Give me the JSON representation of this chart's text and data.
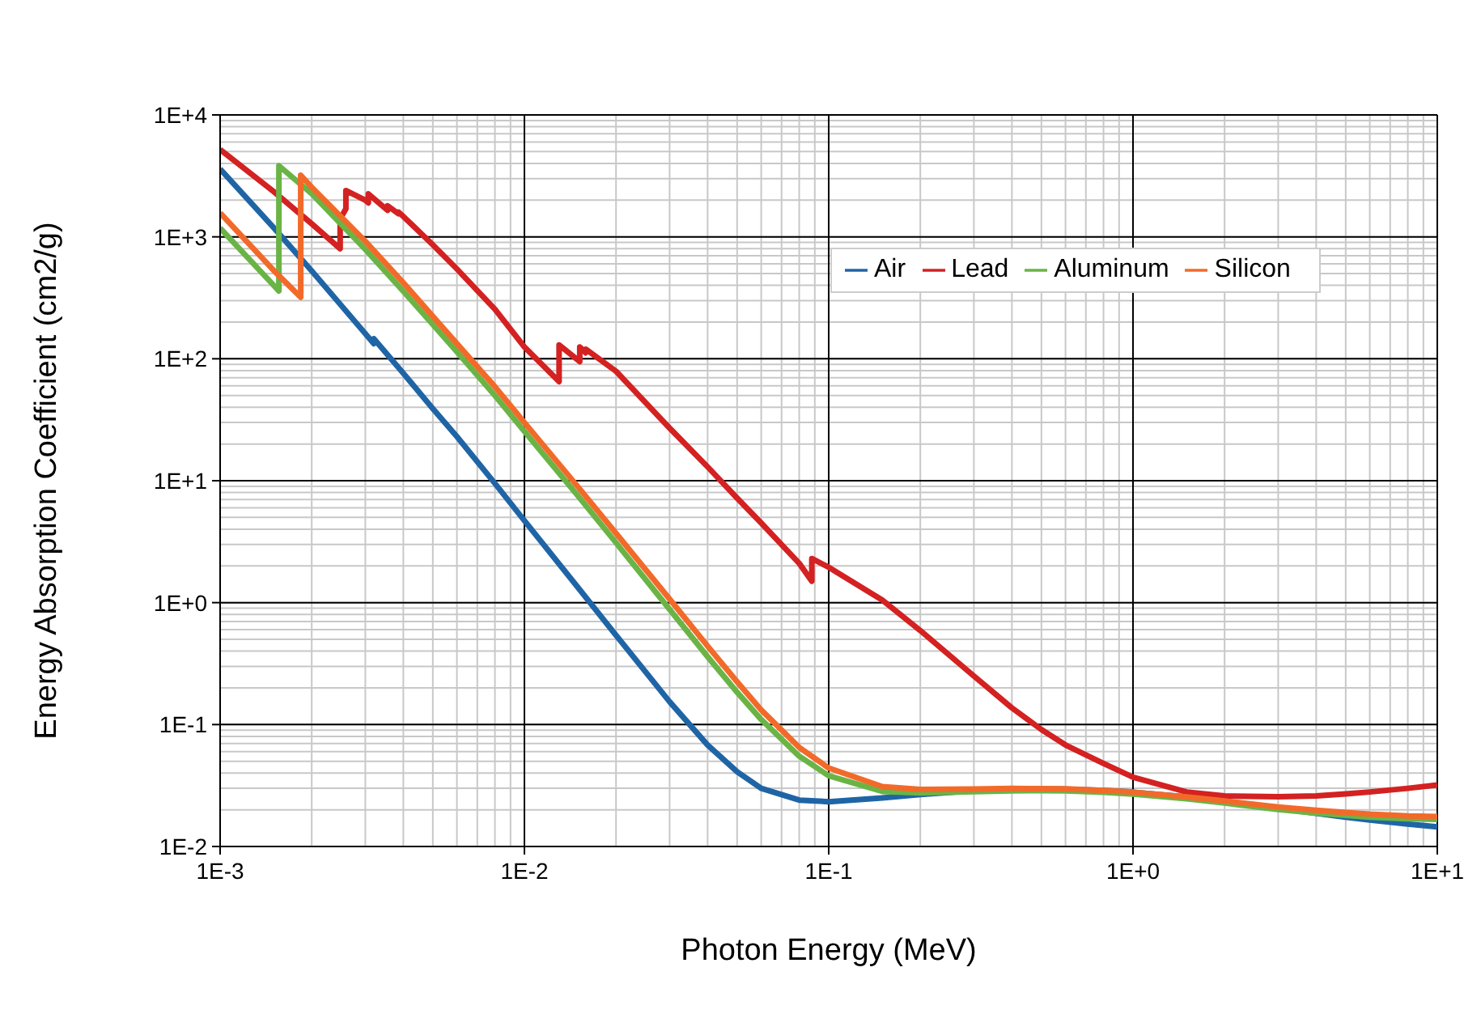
{
  "chart_data": {
    "type": "line",
    "xlabel": "Photon Energy (MeV)",
    "ylabel": "Energy Absorption Coefficient (cm2/g)",
    "log": "xy",
    "grid": true,
    "legend": "top right",
    "marker": "none",
    "line_style": "solid",
    "xlim": [
      0.001,
      10
    ],
    "ylim": [
      0.01,
      10000
    ],
    "xticks": [
      {
        "value": 0.001,
        "label": "1E-3"
      },
      {
        "value": 0.002,
        "label": null
      },
      {
        "value": 0.003,
        "label": null
      },
      {
        "value": 0.004,
        "label": null
      },
      {
        "value": 0.005,
        "label": null
      },
      {
        "value": 0.006,
        "label": null
      },
      {
        "value": 0.007,
        "label": null
      },
      {
        "value": 0.008,
        "label": null
      },
      {
        "value": 0.009,
        "label": null
      },
      {
        "value": 0.01,
        "label": "1E-2"
      },
      {
        "value": 0.02,
        "label": null
      },
      {
        "value": 0.03,
        "label": null
      },
      {
        "value": 0.04,
        "label": null
      },
      {
        "value": 0.05,
        "label": null
      },
      {
        "value": 0.06,
        "label": null
      },
      {
        "value": 0.07,
        "label": null
      },
      {
        "value": 0.08,
        "label": null
      },
      {
        "value": 0.09,
        "label": null
      },
      {
        "value": 0.1,
        "label": "1E-1"
      },
      {
        "value": 0.2,
        "label": null
      },
      {
        "value": 0.3,
        "label": null
      },
      {
        "value": 0.4,
        "label": null
      },
      {
        "value": 0.5,
        "label": null
      },
      {
        "value": 0.6,
        "label": null
      },
      {
        "value": 0.7,
        "label": null
      },
      {
        "value": 0.8,
        "label": null
      },
      {
        "value": 0.9,
        "label": null
      },
      {
        "value": 1,
        "label": "1E+0"
      },
      {
        "value": 2,
        "label": null
      },
      {
        "value": 3,
        "label": null
      },
      {
        "value": 4,
        "label": null
      },
      {
        "value": 5,
        "label": null
      },
      {
        "value": 6,
        "label": null
      },
      {
        "value": 7,
        "label": null
      },
      {
        "value": 8,
        "label": null
      },
      {
        "value": 9,
        "label": null
      },
      {
        "value": 10,
        "label": "1E+1"
      }
    ],
    "yticks": [
      {
        "value": 0.01,
        "label": "1E-2"
      },
      {
        "value": 0.02,
        "label": null
      },
      {
        "value": 0.03,
        "label": null
      },
      {
        "value": 0.04,
        "label": null
      },
      {
        "value": 0.05,
        "label": null
      },
      {
        "value": 0.06,
        "label": null
      },
      {
        "value": 0.07,
        "label": null
      },
      {
        "value": 0.08,
        "label": null
      },
      {
        "value": 0.09,
        "label": null
      },
      {
        "value": 0.1,
        "label": "1E-1"
      },
      {
        "value": 0.2,
        "label": null
      },
      {
        "value": 0.3,
        "label": null
      },
      {
        "value": 0.4,
        "label": null
      },
      {
        "value": 0.5,
        "label": null
      },
      {
        "value": 0.6,
        "label": null
      },
      {
        "value": 0.7,
        "label": null
      },
      {
        "value": 0.8,
        "label": null
      },
      {
        "value": 0.9,
        "label": null
      },
      {
        "value": 1,
        "label": "1E+0"
      },
      {
        "value": 2,
        "label": null
      },
      {
        "value": 3,
        "label": null
      },
      {
        "value": 4,
        "label": null
      },
      {
        "value": 5,
        "label": null
      },
      {
        "value": 6,
        "label": null
      },
      {
        "value": 7,
        "label": null
      },
      {
        "value": 8,
        "label": null
      },
      {
        "value": 9,
        "label": null
      },
      {
        "value": 10,
        "label": "1E+1"
      },
      {
        "value": 20,
        "label": null
      },
      {
        "value": 30,
        "label": null
      },
      {
        "value": 40,
        "label": null
      },
      {
        "value": 50,
        "label": null
      },
      {
        "value": 60,
        "label": null
      },
      {
        "value": 70,
        "label": null
      },
      {
        "value": 80,
        "label": null
      },
      {
        "value": 90,
        "label": null
      },
      {
        "value": 100,
        "label": "1E+2"
      },
      {
        "value": 200,
        "label": null
      },
      {
        "value": 300,
        "label": null
      },
      {
        "value": 400,
        "label": null
      },
      {
        "value": 500,
        "label": null
      },
      {
        "value": 600,
        "label": null
      },
      {
        "value": 700,
        "label": null
      },
      {
        "value": 800,
        "label": null
      },
      {
        "value": 900,
        "label": null
      },
      {
        "value": 1000,
        "label": "1E+3"
      },
      {
        "value": 2000,
        "label": null
      },
      {
        "value": 3000,
        "label": null
      },
      {
        "value": 4000,
        "label": null
      },
      {
        "value": 5000,
        "label": null
      },
      {
        "value": 6000,
        "label": null
      },
      {
        "value": 7000,
        "label": null
      },
      {
        "value": 8000,
        "label": null
      },
      {
        "value": 9000,
        "label": null
      },
      {
        "value": 10000,
        "label": "1E+4"
      }
    ],
    "series": [
      {
        "name": "Air",
        "color": "#1f65a6",
        "x": [
          0.001,
          0.0015,
          0.002,
          0.003,
          0.0032,
          0.0032,
          0.004,
          0.005,
          0.006,
          0.008,
          0.01,
          0.015,
          0.02,
          0.03,
          0.04,
          0.05,
          0.06,
          0.08,
          0.1,
          0.15,
          0.2,
          0.3,
          0.4,
          0.5,
          0.6,
          0.8,
          1,
          1.5,
          2,
          3,
          4,
          5,
          6,
          8,
          10
        ],
        "values": [
          3600,
          1190,
          526,
          161,
          133,
          146,
          76,
          39,
          23,
          9.5,
          4.7,
          1.33,
          0.54,
          0.154,
          0.068,
          0.041,
          0.03,
          0.024,
          0.0233,
          0.025,
          0.0267,
          0.0287,
          0.0295,
          0.0297,
          0.0295,
          0.0288,
          0.0279,
          0.0255,
          0.0235,
          0.0206,
          0.0187,
          0.0174,
          0.0165,
          0.0153,
          0.0145
        ]
      },
      {
        "name": "Lead",
        "color": "#d42121",
        "x": [
          0.001,
          0.0015,
          0.002,
          0.00248,
          0.00248,
          0.00259,
          0.00259,
          0.003,
          0.00307,
          0.00307,
          0.0035,
          0.00355,
          0.00355,
          0.00385,
          0.00385,
          0.004,
          0.005,
          0.006,
          0.008,
          0.01,
          0.013,
          0.013,
          0.0152,
          0.0152,
          0.0159,
          0.0159,
          0.02,
          0.03,
          0.04,
          0.05,
          0.06,
          0.08,
          0.088,
          0.088,
          0.1,
          0.15,
          0.2,
          0.3,
          0.4,
          0.5,
          0.6,
          0.8,
          1,
          1.5,
          2,
          3,
          4,
          5,
          6,
          8,
          10
        ],
        "values": [
          5200,
          2350,
          1280,
          800,
          1400,
          1700,
          2400,
          2000,
          1900,
          2250,
          1700,
          1650,
          1800,
          1550,
          1600,
          1470,
          860,
          545,
          255,
          125,
          65,
          130,
          95,
          125,
          112,
          120,
          79,
          27,
          13,
          7.2,
          4.5,
          2.1,
          1.5,
          2.3,
          1.95,
          1.05,
          0.59,
          0.25,
          0.137,
          0.091,
          0.068,
          0.048,
          0.037,
          0.028,
          0.026,
          0.0256,
          0.026,
          0.027,
          0.028,
          0.03,
          0.032
        ]
      },
      {
        "name": "Aluminum",
        "color": "#6ab446",
        "x": [
          0.001,
          0.0015,
          0.00156,
          0.00156,
          0.002,
          0.003,
          0.004,
          0.005,
          0.006,
          0.008,
          0.01,
          0.015,
          0.02,
          0.03,
          0.04,
          0.05,
          0.06,
          0.08,
          0.1,
          0.15,
          0.2,
          0.3,
          0.4,
          0.5,
          0.6,
          0.8,
          1,
          1.5,
          2,
          3,
          4,
          5,
          6,
          8,
          10
        ],
        "values": [
          1180,
          400,
          360,
          3830,
          2260,
          790,
          358,
          191,
          114,
          50,
          25.4,
          7.5,
          3.1,
          0.88,
          0.36,
          0.184,
          0.11,
          0.055,
          0.038,
          0.0283,
          0.0275,
          0.0282,
          0.0286,
          0.0287,
          0.0286,
          0.0278,
          0.0269,
          0.0246,
          0.0227,
          0.0201,
          0.0188,
          0.018,
          0.0174,
          0.0169,
          0.0167
        ]
      },
      {
        "name": "Silicon",
        "color": "#f26a2a",
        "x": [
          0.001,
          0.0015,
          0.00184,
          0.00184,
          0.002,
          0.003,
          0.004,
          0.005,
          0.006,
          0.008,
          0.01,
          0.015,
          0.02,
          0.03,
          0.04,
          0.05,
          0.06,
          0.08,
          0.1,
          0.15,
          0.2,
          0.3,
          0.4,
          0.5,
          0.6,
          0.8,
          1,
          1.5,
          2,
          3,
          4,
          5,
          6,
          8,
          10
        ],
        "values": [
          1570,
          530,
          320,
          3200,
          2550,
          920,
          420,
          223,
          133,
          59,
          30,
          8.9,
          3.7,
          1.07,
          0.44,
          0.224,
          0.132,
          0.065,
          0.044,
          0.031,
          0.0294,
          0.0296,
          0.0299,
          0.0298,
          0.0297,
          0.0288,
          0.0279,
          0.0255,
          0.0236,
          0.0211,
          0.0198,
          0.019,
          0.0184,
          0.0178,
          0.0176
        ]
      }
    ]
  }
}
